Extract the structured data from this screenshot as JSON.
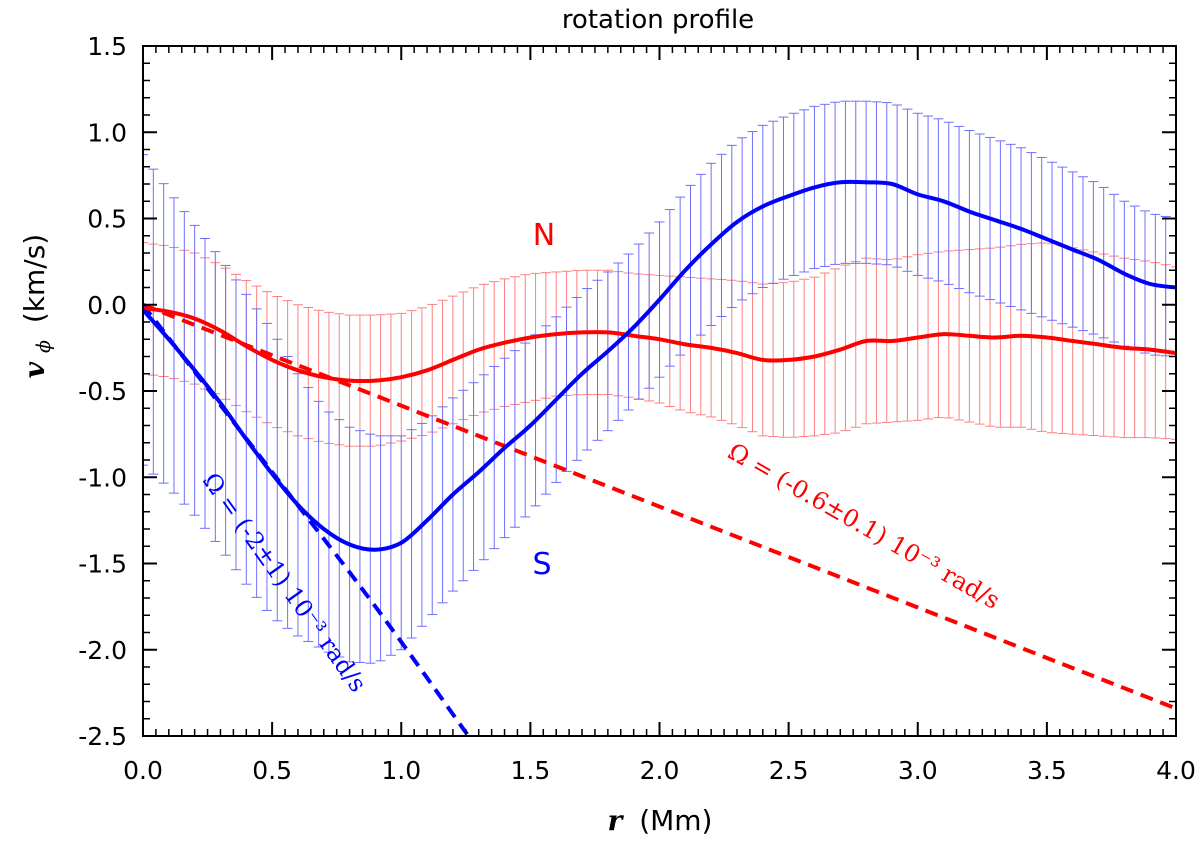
{
  "chart_data": {
    "type": "line",
    "title": "rotation profile",
    "xlabel": {
      "symbol": "r",
      "unit": "(Mm)"
    },
    "ylabel": {
      "symbol": "v",
      "subscript": "ϕ",
      "unit": "(km/s)"
    },
    "xlim": [
      0.0,
      4.0
    ],
    "ylim": [
      -2.5,
      1.5
    ],
    "xticks": [
      "0.0",
      "0.5",
      "1.0",
      "1.5",
      "2.0",
      "2.5",
      "3.0",
      "3.5",
      "4.0"
    ],
    "yticks": [
      "1.5",
      "1.0",
      "0.5",
      "0.0",
      "-0.5",
      "-1.0",
      "-1.5",
      "-2.0",
      "-2.5"
    ],
    "grid": false,
    "colors": {
      "N": "#ff0000",
      "S": "#0000ff",
      "N_err": "#ff7f7f",
      "S_err": "#6f6fff"
    },
    "series_labels": [
      {
        "text": "N",
        "color": "#ff0000"
      },
      {
        "text": "S",
        "color": "#0000ff"
      }
    ],
    "series": [
      {
        "label": "N",
        "style": "solid-with-errorbars",
        "x": [
          0.0,
          0.1,
          0.2,
          0.3,
          0.4,
          0.5,
          0.6,
          0.7,
          0.8,
          0.9,
          1.0,
          1.1,
          1.2,
          1.3,
          1.4,
          1.5,
          1.6,
          1.7,
          1.8,
          1.9,
          2.0,
          2.1,
          2.2,
          2.3,
          2.4,
          2.5,
          2.6,
          2.7,
          2.8,
          2.9,
          3.0,
          3.1,
          3.2,
          3.3,
          3.4,
          3.5,
          3.6,
          3.7,
          3.8,
          3.9,
          4.0
        ],
        "y": [
          -0.02,
          -0.04,
          -0.08,
          -0.15,
          -0.24,
          -0.32,
          -0.38,
          -0.42,
          -0.44,
          -0.44,
          -0.42,
          -0.38,
          -0.32,
          -0.26,
          -0.22,
          -0.19,
          -0.17,
          -0.16,
          -0.16,
          -0.18,
          -0.2,
          -0.23,
          -0.25,
          -0.28,
          -0.32,
          -0.32,
          -0.3,
          -0.26,
          -0.21,
          -0.21,
          -0.19,
          -0.17,
          -0.18,
          -0.19,
          -0.18,
          -0.19,
          -0.21,
          -0.23,
          -0.25,
          -0.26,
          -0.28
        ],
        "err": [
          0.38,
          0.38,
          0.38,
          0.38,
          0.38,
          0.38,
          0.38,
          0.38,
          0.38,
          0.38,
          0.37,
          0.37,
          0.37,
          0.37,
          0.37,
          0.37,
          0.36,
          0.36,
          0.36,
          0.36,
          0.37,
          0.39,
          0.4,
          0.42,
          0.44,
          0.45,
          0.46,
          0.48,
          0.48,
          0.47,
          0.48,
          0.48,
          0.5,
          0.52,
          0.53,
          0.55,
          0.54,
          0.53,
          0.52,
          0.51,
          0.5
        ]
      },
      {
        "label": "S",
        "style": "solid-with-errorbars",
        "x": [
          0.0,
          0.1,
          0.2,
          0.3,
          0.4,
          0.5,
          0.6,
          0.7,
          0.8,
          0.9,
          1.0,
          1.1,
          1.2,
          1.3,
          1.4,
          1.5,
          1.6,
          1.7,
          1.8,
          1.9,
          2.0,
          2.1,
          2.2,
          2.3,
          2.4,
          2.5,
          2.6,
          2.7,
          2.8,
          2.9,
          3.0,
          3.1,
          3.2,
          3.3,
          3.4,
          3.5,
          3.6,
          3.7,
          3.8,
          3.9,
          4.0
        ],
        "y": [
          -0.03,
          -0.2,
          -0.38,
          -0.57,
          -0.78,
          -0.98,
          -1.16,
          -1.3,
          -1.39,
          -1.42,
          -1.38,
          -1.25,
          -1.1,
          -0.97,
          -0.83,
          -0.7,
          -0.55,
          -0.4,
          -0.27,
          -0.13,
          0.03,
          0.2,
          0.35,
          0.48,
          0.57,
          0.63,
          0.68,
          0.71,
          0.71,
          0.7,
          0.64,
          0.6,
          0.54,
          0.49,
          0.44,
          0.38,
          0.32,
          0.26,
          0.18,
          0.12,
          0.1
        ],
        "err": [
          0.9,
          0.86,
          0.84,
          0.84,
          0.84,
          0.83,
          0.76,
          0.7,
          0.68,
          0.66,
          0.62,
          0.58,
          0.56,
          0.54,
          0.52,
          0.5,
          0.48,
          0.47,
          0.46,
          0.45,
          0.45,
          0.46,
          0.47,
          0.47,
          0.47,
          0.47,
          0.47,
          0.47,
          0.47,
          0.47,
          0.47,
          0.47,
          0.47,
          0.47,
          0.47,
          0.46,
          0.45,
          0.44,
          0.42,
          0.41,
          0.4
        ]
      },
      {
        "label": "Ω fit N",
        "style": "dashed",
        "x": [
          0.0,
          4.0
        ],
        "y": [
          0.0,
          -2.34
        ]
      },
      {
        "label": "Ω fit S",
        "style": "dashed",
        "x": [
          0.0,
          0.5,
          0.9,
          1.26
        ],
        "y": [
          0.0,
          -0.97,
          -1.75,
          -2.5
        ]
      }
    ],
    "annotations": [
      {
        "text": "Ω = (-0.6±0.1) 10⁻³ rad/s",
        "color": "#ff0000"
      },
      {
        "text": "Ω = (-2±1) 10⁻³ rad/s",
        "color": "#0000ff"
      }
    ]
  }
}
